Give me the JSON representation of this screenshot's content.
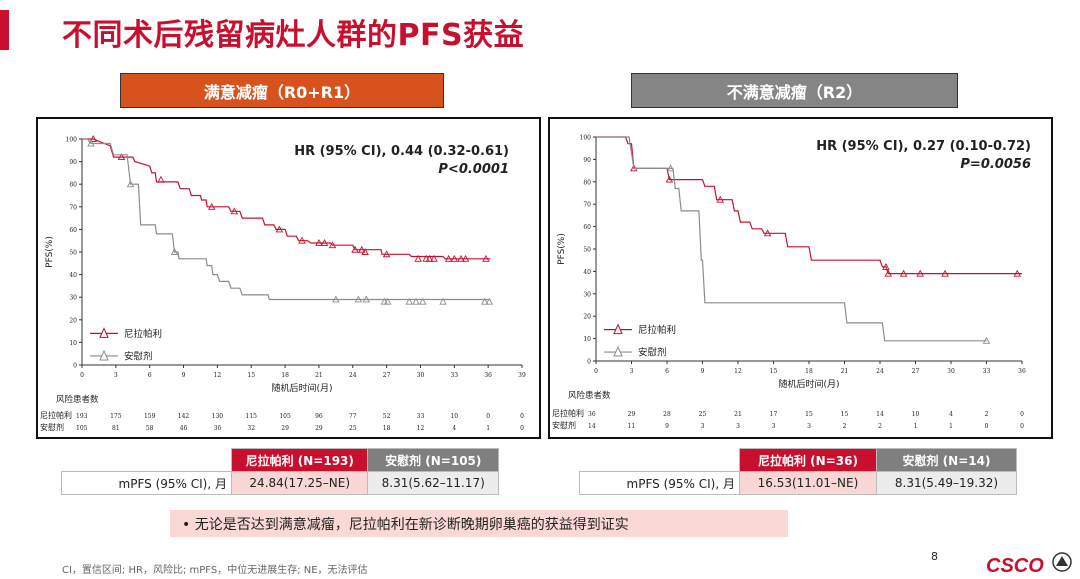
{
  "slide": {
    "title": "不同术后残留病灶人群的PFS获益",
    "page_number": "8",
    "footnote": "CI，置信区间; HR，风险比; mPFS，中位无进展生存; NE，无法评估",
    "callout": "• 无论是否达到满意减瘤，尼拉帕利在新诊断晚期卵巢癌的获益得到证实",
    "logo_text": "CSCO",
    "colors": {
      "accent": "#c8102e",
      "niraparib": "#c8102e",
      "placebo": "#8c8c8c",
      "left_header": "#d8521d",
      "right_header": "#858585"
    }
  },
  "left": {
    "header": "满意减瘤（R0+R1）",
    "hr": "HR (95% CI), 0.44 (0.32-0.61)",
    "p": "P<0.0001",
    "table": {
      "col1": "尼拉帕利 (N=193)",
      "col2": "安慰剂 (N=105)",
      "row_label": "mPFS (95% CI), 月",
      "val1": "24.84(17.25–NE)",
      "val2": "8.31(5.62–11.17)"
    }
  },
  "right": {
    "header": "不满意减瘤（R2）",
    "hr": "HR (95% CI), 0.27 (0.10-0.72)",
    "p": "P=0.0056",
    "table": {
      "col1": "尼拉帕利 (N=36)",
      "col2": "安慰剂 (N=14)",
      "row_label": "mPFS (95% CI), 月",
      "val1": "16.53(11.01–NE)",
      "val2": "8.31(5.49–19.32)"
    }
  },
  "chart_data": [
    {
      "type": "line",
      "step": true,
      "ylabel": "PFS(%)",
      "xlabel": "随机后时间(月)",
      "x_ticks": [
        0,
        3,
        6,
        9,
        12,
        15,
        18,
        21,
        24,
        27,
        30,
        33,
        36,
        39
      ],
      "y_ticks": [
        0,
        10,
        20,
        30,
        40,
        50,
        60,
        70,
        80,
        90,
        100
      ],
      "xlim": [
        0,
        39
      ],
      "ylim": [
        0,
        100
      ],
      "legend": "bottom-left",
      "risk_title": "风险患者数",
      "series": [
        {
          "name": "尼拉帕利",
          "color": "#c8102e",
          "points": [
            [
              0,
              100
            ],
            [
              1,
              100
            ],
            [
              1.5,
              99
            ],
            [
              2.5,
              97
            ],
            [
              2.8,
              92
            ],
            [
              4.5,
              92
            ],
            [
              4.7,
              90
            ],
            [
              6,
              88
            ],
            [
              6.2,
              85
            ],
            [
              6.5,
              85
            ],
            [
              6.6,
              81
            ],
            [
              8.5,
              81
            ],
            [
              8.7,
              78
            ],
            [
              9.5,
              78
            ],
            [
              9.7,
              75
            ],
            [
              10.5,
              75
            ],
            [
              10.6,
              73
            ],
            [
              11,
              73
            ],
            [
              11.1,
              70
            ],
            [
              13,
              70
            ],
            [
              13.2,
              68
            ],
            [
              14,
              68
            ],
            [
              14.2,
              65
            ],
            [
              16,
              65
            ],
            [
              16.2,
              62
            ],
            [
              17,
              62
            ],
            [
              17.2,
              60
            ],
            [
              18,
              60
            ],
            [
              18.2,
              57
            ],
            [
              19,
              57
            ],
            [
              19.2,
              55
            ],
            [
              20,
              55
            ],
            [
              20.3,
              54
            ],
            [
              22,
              54
            ],
            [
              22.2,
              53
            ],
            [
              24,
              53
            ],
            [
              24.2,
              51
            ],
            [
              26.5,
              51
            ],
            [
              26.6,
              49
            ],
            [
              29,
              49
            ],
            [
              29.2,
              48
            ],
            [
              32,
              48
            ],
            [
              32.2,
              47
            ],
            [
              35,
              47
            ],
            [
              35.2,
              47
            ],
            [
              36.2,
              47
            ]
          ],
          "censored": [
            [
              1,
              100
            ],
            [
              3.5,
              92
            ],
            [
              7,
              82
            ],
            [
              11.5,
              70
            ],
            [
              13.5,
              68
            ],
            [
              17.5,
              60
            ],
            [
              19.5,
              55
            ],
            [
              21,
              54
            ],
            [
              21.5,
              54
            ],
            [
              22.2,
              53
            ],
            [
              24.2,
              51
            ],
            [
              24.8,
              51
            ],
            [
              25.1,
              50
            ],
            [
              27,
              49
            ],
            [
              29.8,
              47
            ],
            [
              30.5,
              47
            ],
            [
              30.8,
              47
            ],
            [
              31.2,
              47
            ],
            [
              32.5,
              47
            ],
            [
              33,
              47
            ],
            [
              33.6,
              47
            ],
            [
              34,
              47
            ],
            [
              35.8,
              47
            ]
          ],
          "at_risk": [
            193,
            175,
            159,
            142,
            130,
            115,
            105,
            96,
            77,
            52,
            33,
            10,
            0,
            0
          ]
        },
        {
          "name": "安慰剂",
          "color": "#8c8c8c",
          "points": [
            [
              0,
              100
            ],
            [
              0.5,
              100
            ],
            [
              0.8,
              98
            ],
            [
              2.5,
              98
            ],
            [
              2.8,
              93
            ],
            [
              4,
              93
            ],
            [
              4.3,
              80
            ],
            [
              5,
              80
            ],
            [
              5.2,
              62
            ],
            [
              6.5,
              62
            ],
            [
              6.6,
              58
            ],
            [
              8,
              58
            ],
            [
              8.2,
              50
            ],
            [
              8.5,
              50
            ],
            [
              8.6,
              47
            ],
            [
              11,
              47
            ],
            [
              11.1,
              44
            ],
            [
              11.5,
              44
            ],
            [
              11.6,
              40
            ],
            [
              12,
              40
            ],
            [
              12.2,
              37
            ],
            [
              13,
              37
            ],
            [
              13.2,
              34
            ],
            [
              14,
              34
            ],
            [
              14.2,
              31
            ],
            [
              16.5,
              31
            ],
            [
              16.6,
              29
            ],
            [
              24,
              29
            ],
            [
              24.2,
              29
            ],
            [
              36.2,
              29
            ]
          ],
          "censored": [
            [
              0.8,
              98
            ],
            [
              4.3,
              80
            ],
            [
              8.2,
              50
            ],
            [
              22.5,
              29
            ],
            [
              24.5,
              29
            ],
            [
              25.2,
              29
            ],
            [
              26.8,
              28
            ],
            [
              27.1,
              28
            ],
            [
              29,
              28
            ],
            [
              29.6,
              28
            ],
            [
              30.2,
              28
            ],
            [
              32,
              28
            ],
            [
              35.7,
              28
            ],
            [
              36.1,
              28
            ]
          ],
          "at_risk": [
            105,
            81,
            58,
            46,
            36,
            32,
            29,
            29,
            25,
            18,
            12,
            4,
            1,
            0
          ]
        }
      ]
    },
    {
      "type": "line",
      "step": true,
      "ylabel": "PFS(%)",
      "xlabel": "随机后时间(月)",
      "x_ticks": [
        0,
        3,
        6,
        9,
        12,
        15,
        18,
        21,
        24,
        27,
        30,
        33,
        36
      ],
      "y_ticks": [
        0,
        10,
        20,
        30,
        40,
        50,
        60,
        70,
        80,
        90,
        100
      ],
      "xlim": [
        0,
        36
      ],
      "ylim": [
        0,
        100
      ],
      "legend": "bottom-left",
      "risk_title": "风险患者数",
      "series": [
        {
          "name": "尼拉帕利",
          "color": "#c8102e",
          "points": [
            [
              0,
              100
            ],
            [
              2.5,
              100
            ],
            [
              2.7,
              97
            ],
            [
              3,
              97
            ],
            [
              3.2,
              86
            ],
            [
              6,
              86
            ],
            [
              6.2,
              81
            ],
            [
              9,
              81
            ],
            [
              9.2,
              78
            ],
            [
              10,
              78
            ],
            [
              10.2,
              72
            ],
            [
              11.5,
              72
            ],
            [
              11.7,
              67
            ],
            [
              12,
              67
            ],
            [
              12.2,
              62
            ],
            [
              13,
              62
            ],
            [
              13.2,
              59
            ],
            [
              14,
              59
            ],
            [
              14.2,
              57
            ],
            [
              16,
              57
            ],
            [
              16.2,
              51
            ],
            [
              18,
              51
            ],
            [
              18.2,
              45
            ],
            [
              24,
              45
            ],
            [
              24.2,
              42
            ],
            [
              24.5,
              42
            ],
            [
              24.7,
              39
            ],
            [
              36,
              39
            ]
          ],
          "censored": [
            [
              3.2,
              86
            ],
            [
              6.2,
              81
            ],
            [
              10.5,
              72
            ],
            [
              14.5,
              57
            ],
            [
              24.5,
              42
            ],
            [
              24.7,
              39
            ],
            [
              26,
              39
            ],
            [
              27.4,
              39
            ],
            [
              29.5,
              39
            ],
            [
              35.6,
              39
            ]
          ],
          "at_risk": [
            36,
            29,
            28,
            25,
            21,
            17,
            15,
            15,
            14,
            10,
            4,
            2,
            0
          ]
        },
        {
          "name": "安慰剂",
          "color": "#8c8c8c",
          "points": [
            [
              0,
              100
            ],
            [
              2.8,
              100
            ],
            [
              3,
              93
            ],
            [
              3.2,
              86
            ],
            [
              6.5,
              86
            ],
            [
              6.7,
              77
            ],
            [
              7,
              77
            ],
            [
              7.2,
              67
            ],
            [
              8.7,
              67
            ],
            [
              8.9,
              45
            ],
            [
              9,
              45
            ],
            [
              9.2,
              26
            ],
            [
              21,
              26
            ],
            [
              21.2,
              17
            ],
            [
              24.2,
              17
            ],
            [
              24.4,
              9
            ],
            [
              30,
              9
            ],
            [
              33,
              9
            ]
          ],
          "censored": [
            [
              6.3,
              86
            ],
            [
              33,
              9
            ]
          ],
          "at_risk": [
            14,
            11,
            9,
            3,
            3,
            3,
            3,
            2,
            2,
            1,
            1,
            0,
            0
          ]
        }
      ]
    }
  ]
}
